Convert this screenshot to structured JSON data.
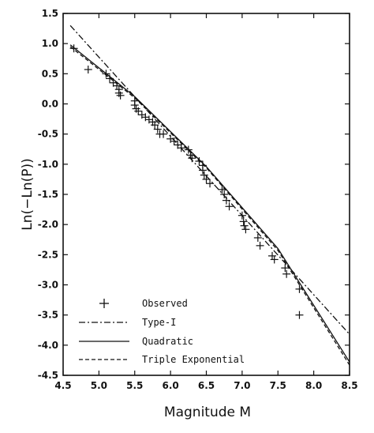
{
  "chart_data": {
    "type": "scatter",
    "xlabel": "Magnitude M",
    "ylabel": "Ln(−Ln(P))",
    "xlim": [
      4.5,
      8.5
    ],
    "ylim": [
      -4.5,
      1.5
    ],
    "xticks": [
      "4.5",
      "5.0",
      "5.5",
      "6.0",
      "6.5",
      "7.0",
      "7.5",
      "8.0",
      "8.5"
    ],
    "yticks": [
      "1.5",
      "1.0",
      "0.5",
      "0.0",
      "-0.5",
      "-1.0",
      "-1.5",
      "-2.0",
      "-2.5",
      "-3.0",
      "-3.5",
      "-4.0",
      "-4.5"
    ],
    "grid": false,
    "legend_position": "bottom-left",
    "series": [
      {
        "name": "Observed",
        "marker": "+",
        "points": [
          [
            4.65,
            0.92
          ],
          [
            4.85,
            0.57
          ],
          [
            5.1,
            0.5
          ],
          [
            5.15,
            0.42
          ],
          [
            5.2,
            0.35
          ],
          [
            5.25,
            0.3
          ],
          [
            5.28,
            0.24
          ],
          [
            5.28,
            0.18
          ],
          [
            5.3,
            0.14
          ],
          [
            5.5,
            0.05
          ],
          [
            5.5,
            -0.02
          ],
          [
            5.52,
            -0.08
          ],
          [
            5.55,
            -0.12
          ],
          [
            5.6,
            -0.18
          ],
          [
            5.65,
            -0.22
          ],
          [
            5.7,
            -0.26
          ],
          [
            5.75,
            -0.3
          ],
          [
            5.78,
            -0.35
          ],
          [
            5.82,
            -0.42
          ],
          [
            5.85,
            -0.5
          ],
          [
            5.9,
            -0.5
          ],
          [
            6.0,
            -0.58
          ],
          [
            6.05,
            -0.62
          ],
          [
            6.1,
            -0.68
          ],
          [
            6.15,
            -0.73
          ],
          [
            6.25,
            -0.76
          ],
          [
            6.28,
            -0.85
          ],
          [
            6.3,
            -0.9
          ],
          [
            6.4,
            -0.95
          ],
          [
            6.45,
            -1.02
          ],
          [
            6.45,
            -1.1
          ],
          [
            6.47,
            -1.18
          ],
          [
            6.5,
            -1.25
          ],
          [
            6.55,
            -1.32
          ],
          [
            6.72,
            -1.42
          ],
          [
            6.75,
            -1.5
          ],
          [
            6.78,
            -1.6
          ],
          [
            6.82,
            -1.7
          ],
          [
            7.0,
            -1.85
          ],
          [
            7.02,
            -1.95
          ],
          [
            7.03,
            -2.02
          ],
          [
            7.05,
            -2.08
          ],
          [
            7.22,
            -2.22
          ],
          [
            7.25,
            -2.35
          ],
          [
            7.42,
            -2.52
          ],
          [
            7.45,
            -2.58
          ],
          [
            7.6,
            -2.72
          ],
          [
            7.62,
            -2.82
          ],
          [
            7.8,
            -3.07
          ],
          [
            7.8,
            -3.5
          ]
        ]
      },
      {
        "name": "Type-I",
        "style": "dash-dot",
        "x": [
          4.6,
          8.5
        ],
        "y": [
          1.3,
          -3.82
        ]
      },
      {
        "name": "Quadratic",
        "style": "solid",
        "x": [
          4.6,
          5.5,
          6.5,
          7.5,
          8.5
        ],
        "y": [
          0.98,
          0.12,
          -1.04,
          -2.4,
          -4.28
        ]
      },
      {
        "name": "Triple Exponential",
        "style": "dashed",
        "x": [
          4.6,
          5.5,
          6.5,
          7.5,
          8.5
        ],
        "y": [
          0.95,
          0.1,
          -1.06,
          -2.43,
          -4.33
        ]
      }
    ]
  }
}
